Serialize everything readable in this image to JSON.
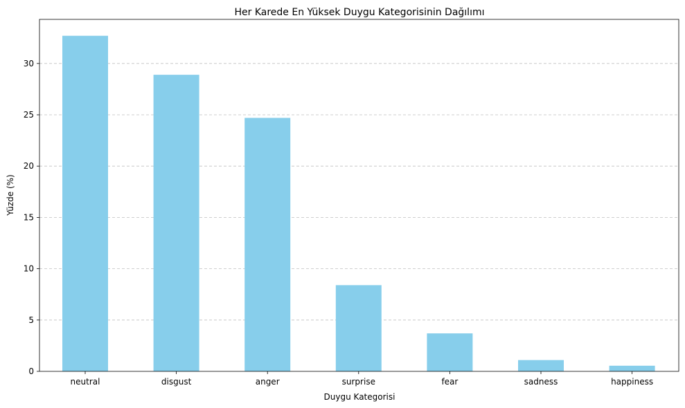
{
  "chart_data": {
    "type": "bar",
    "title": "Her Karede En Yüksek Duygu Kategorisinin Dağılımı",
    "xlabel": "Duygu Kategorisi",
    "ylabel": "Yüzde (%)",
    "categories": [
      "neutral",
      "disgust",
      "anger",
      "surprise",
      "fear",
      "sadness",
      "happiness"
    ],
    "values": [
      32.7,
      28.9,
      24.7,
      8.4,
      3.7,
      1.1,
      0.55
    ],
    "ylim": [
      0,
      34.3
    ],
    "yticks": [
      0,
      5,
      10,
      15,
      20,
      25,
      30
    ],
    "grid": "y-dashed",
    "bar_color": "#87ceeb"
  }
}
